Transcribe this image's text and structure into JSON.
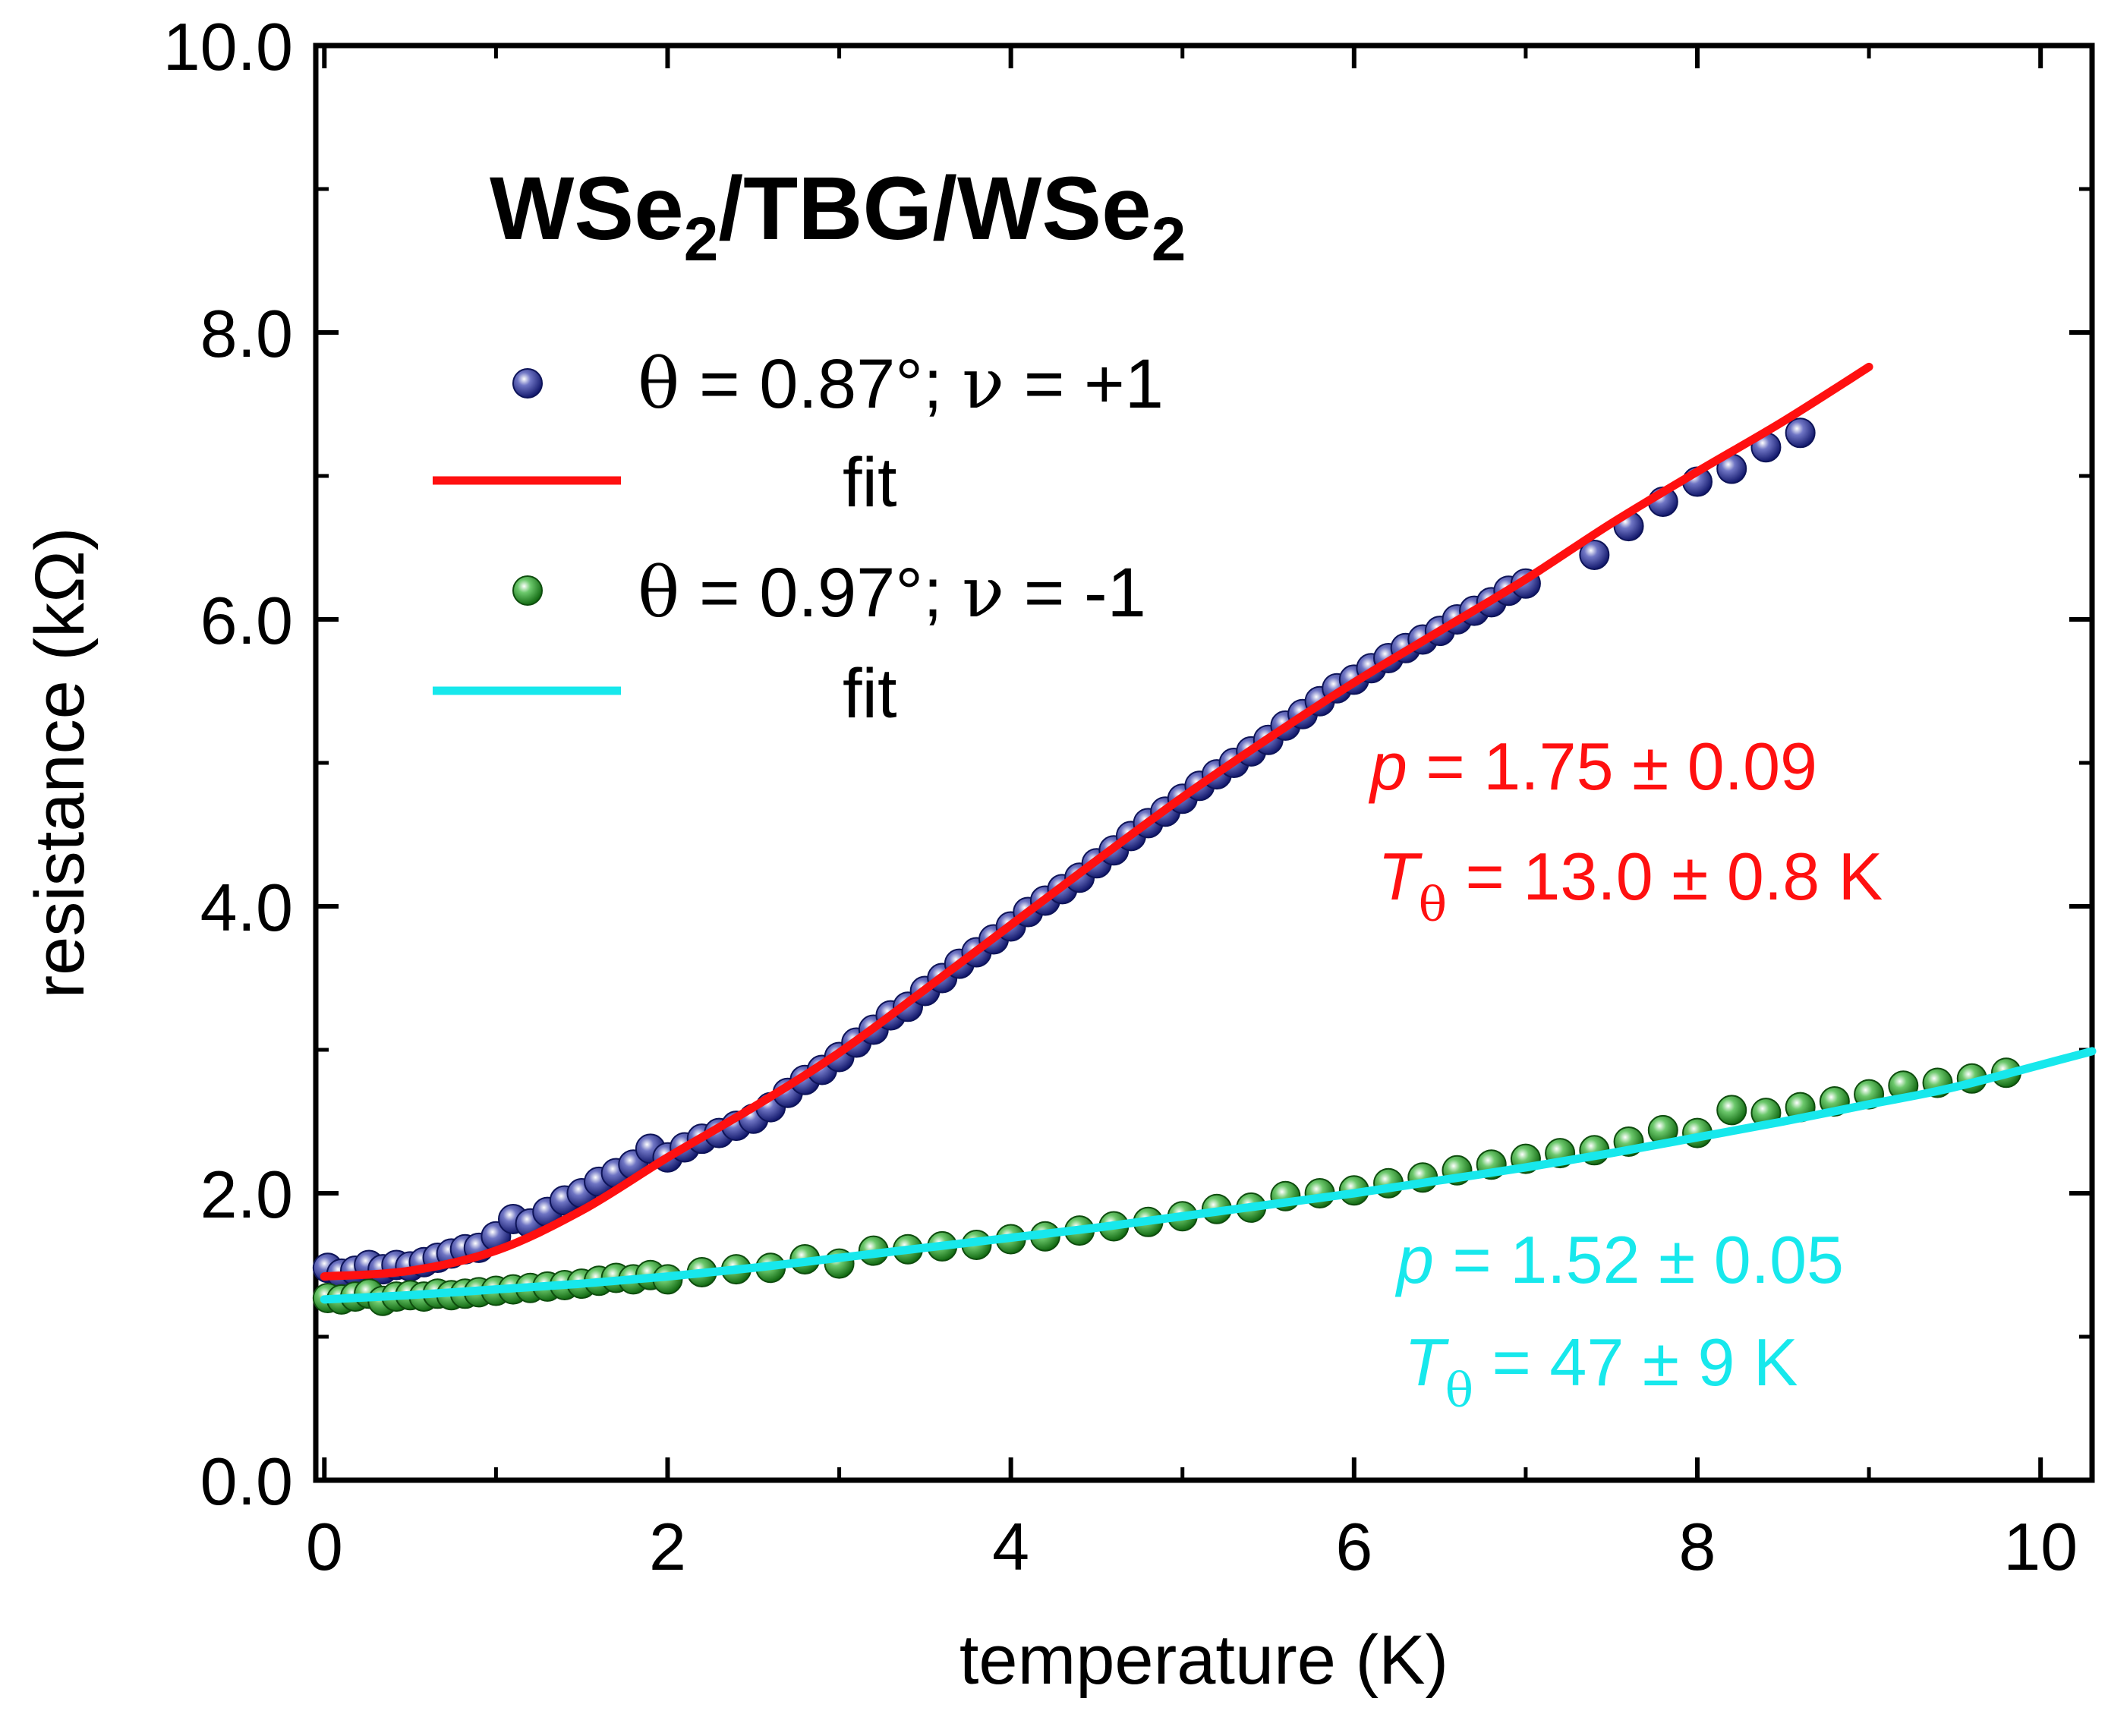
{
  "chart_data": {
    "type": "scatter",
    "title": {
      "base1": "WSe",
      "sub1": "2",
      "mid": "/TBG/WSe",
      "sub2": "2"
    },
    "xlabel": "temperature (K)",
    "ylabel": "resistance (kΩ)",
    "xlim": [
      -0.05,
      10.3
    ],
    "ylim": [
      0,
      10
    ],
    "x_ticks": [
      0,
      2,
      4,
      6,
      8,
      10
    ],
    "x_tick_labels": [
      "0",
      "2",
      "4",
      "6",
      "8",
      "10"
    ],
    "y_ticks": [
      0,
      2,
      4,
      6,
      8,
      10
    ],
    "y_tick_labels": [
      "0.0",
      "2.0",
      "4.0",
      "6.0",
      "8.0",
      "10.0"
    ],
    "legend": {
      "position": "top-left",
      "series1_label": {
        "theta": "θ",
        "mid": " = 0.87°; ",
        "nu": "ν",
        "end": " = +1"
      },
      "fit1_label": "fit",
      "series2_label": {
        "theta": "θ",
        "mid": " = 0.97°; ",
        "nu": "ν",
        "end": " = -1"
      },
      "fit2_label": "fit"
    },
    "series": [
      {
        "name": "θ = 0.87°; ν = +1",
        "kind": "scatter",
        "color": "#1a237e",
        "x": [
          0.02,
          0.1,
          0.18,
          0.26,
          0.34,
          0.42,
          0.5,
          0.58,
          0.66,
          0.74,
          0.82,
          0.9,
          1.0,
          1.1,
          1.2,
          1.3,
          1.4,
          1.5,
          1.6,
          1.7,
          1.8,
          1.9,
          2.0,
          2.1,
          2.2,
          2.3,
          2.4,
          2.5,
          2.6,
          2.7,
          2.8,
          2.9,
          3.0,
          3.1,
          3.2,
          3.3,
          3.4,
          3.5,
          3.6,
          3.7,
          3.8,
          3.9,
          4.0,
          4.1,
          4.2,
          4.3,
          4.4,
          4.5,
          4.6,
          4.7,
          4.8,
          4.9,
          5.0,
          5.1,
          5.2,
          5.3,
          5.4,
          5.5,
          5.6,
          5.7,
          5.8,
          5.9,
          6.0,
          6.1,
          6.2,
          6.3,
          6.4,
          6.5,
          6.6,
          6.7,
          6.8,
          6.9,
          7.0,
          7.4,
          7.6,
          7.8,
          8.0,
          8.2,
          8.4,
          8.6
        ],
        "y": [
          1.48,
          1.44,
          1.46,
          1.5,
          1.47,
          1.5,
          1.49,
          1.52,
          1.55,
          1.58,
          1.61,
          1.62,
          1.7,
          1.82,
          1.79,
          1.87,
          1.95,
          2.0,
          2.08,
          2.14,
          2.2,
          2.31,
          2.25,
          2.32,
          2.38,
          2.42,
          2.47,
          2.52,
          2.6,
          2.7,
          2.79,
          2.86,
          2.95,
          3.05,
          3.14,
          3.24,
          3.3,
          3.41,
          3.5,
          3.6,
          3.68,
          3.77,
          3.86,
          3.96,
          4.04,
          4.12,
          4.2,
          4.3,
          4.39,
          4.49,
          4.58,
          4.66,
          4.75,
          4.84,
          4.92,
          5.0,
          5.08,
          5.16,
          5.26,
          5.34,
          5.43,
          5.52,
          5.58,
          5.66,
          5.73,
          5.8,
          5.86,
          5.92,
          6.0,
          6.06,
          6.12,
          6.2,
          6.25,
          6.45,
          6.65,
          6.82,
          6.96,
          7.05,
          7.2,
          7.3
        ]
      },
      {
        "name": "fit",
        "kind": "line",
        "color": "#ff1010",
        "x": [
          0,
          0.5,
          1.0,
          1.5,
          2.0,
          2.5,
          3.0,
          3.5,
          4.0,
          4.5,
          5.0,
          5.5,
          6.0,
          6.5,
          7.0,
          7.5,
          8.0,
          8.5,
          9.0
        ],
        "y": [
          1.42,
          1.46,
          1.6,
          1.88,
          2.25,
          2.6,
          2.98,
          3.42,
          3.87,
          4.32,
          4.76,
          5.17,
          5.56,
          5.92,
          6.28,
          6.67,
          7.03,
          7.38,
          7.76
        ]
      },
      {
        "name": "θ = 0.97°; ν = -1",
        "kind": "scatter",
        "color": "#1b7a1b",
        "x": [
          0.02,
          0.1,
          0.18,
          0.26,
          0.34,
          0.42,
          0.5,
          0.58,
          0.66,
          0.74,
          0.82,
          0.9,
          1.0,
          1.1,
          1.2,
          1.3,
          1.4,
          1.5,
          1.6,
          1.7,
          1.8,
          1.9,
          2.0,
          2.2,
          2.4,
          2.6,
          2.8,
          3.0,
          3.2,
          3.4,
          3.6,
          3.8,
          4.0,
          4.2,
          4.4,
          4.6,
          4.8,
          5.0,
          5.2,
          5.4,
          5.6,
          5.8,
          6.0,
          6.2,
          6.4,
          6.6,
          6.8,
          7.0,
          7.2,
          7.4,
          7.6,
          7.8,
          8.0,
          8.2,
          8.4,
          8.6,
          8.8,
          9.0,
          9.2,
          9.4,
          9.6,
          9.8
        ],
        "y": [
          1.27,
          1.26,
          1.28,
          1.3,
          1.25,
          1.28,
          1.29,
          1.28,
          1.3,
          1.29,
          1.3,
          1.31,
          1.32,
          1.33,
          1.34,
          1.35,
          1.36,
          1.37,
          1.39,
          1.41,
          1.4,
          1.43,
          1.4,
          1.45,
          1.47,
          1.48,
          1.54,
          1.51,
          1.6,
          1.61,
          1.63,
          1.64,
          1.68,
          1.7,
          1.74,
          1.77,
          1.8,
          1.84,
          1.89,
          1.9,
          1.98,
          2.0,
          2.02,
          2.07,
          2.11,
          2.16,
          2.2,
          2.24,
          2.28,
          2.3,
          2.36,
          2.44,
          2.42,
          2.58,
          2.56,
          2.6,
          2.64,
          2.69,
          2.75,
          2.77,
          2.8,
          2.84
        ]
      },
      {
        "name": "fit",
        "kind": "line",
        "color": "#17e8ec",
        "x": [
          0,
          0.5,
          1.0,
          1.5,
          2.0,
          2.5,
          3.0,
          3.5,
          4.0,
          4.5,
          5.0,
          5.5,
          6.0,
          6.5,
          7.0,
          7.5,
          8.0,
          8.5,
          9.0,
          9.5,
          10.3
        ],
        "y": [
          1.26,
          1.29,
          1.33,
          1.37,
          1.42,
          1.48,
          1.55,
          1.62,
          1.69,
          1.76,
          1.84,
          1.92,
          2.0,
          2.09,
          2.18,
          2.28,
          2.39,
          2.5,
          2.62,
          2.74,
          2.99
        ]
      }
    ],
    "annotations": [
      {
        "id": "red-params",
        "color": "#ff1010",
        "line1": {
          "sym": "p",
          "rest": " = 1.75 ± 0.09"
        },
        "line2": {
          "sym": "T",
          "sub": "θ",
          "rest": " = 13.0 ± 0.8 K"
        }
      },
      {
        "id": "cyan-params",
        "color": "#17e8ec",
        "line1": {
          "sym": "p",
          "rest": " = 1.52 ± 0.05"
        },
        "line2": {
          "sym": "T",
          "sub": "θ",
          "rest": " = 47 ± 9 K"
        }
      }
    ]
  }
}
